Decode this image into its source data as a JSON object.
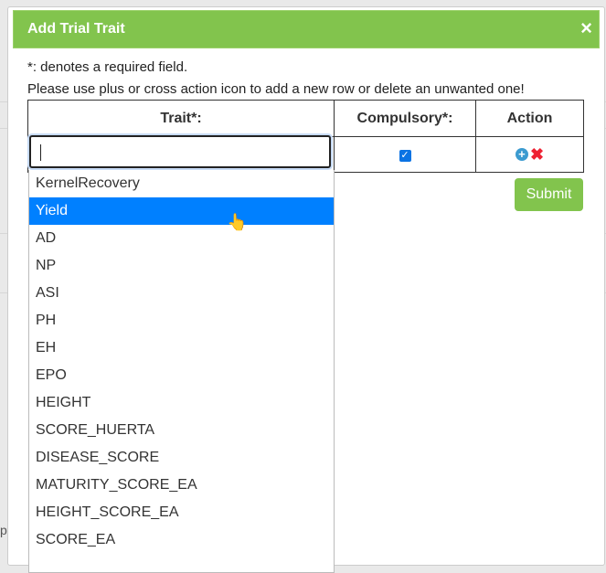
{
  "dialog": {
    "title": "Add Trial Trait",
    "close": "×",
    "note_required": "*: denotes a required field.",
    "note_instructions": "Please use plus or cross action icon to add a new row or delete an unwanted one!",
    "table": {
      "headers": [
        "Trait*:",
        "Compulsory*:",
        "Action"
      ],
      "row": {
        "trait_value": "",
        "compulsory_checked": true,
        "actions": [
          "plus-icon",
          "cross-icon"
        ]
      }
    },
    "submit_label": "Submit",
    "dropdown": {
      "selected": "Yield",
      "items": [
        "KernelRecovery",
        "Yield",
        "AD",
        "NP",
        "ASI",
        "PH",
        "EH",
        "EPO",
        "HEIGHT",
        "SCORE_HUERTA",
        "DISEASE_SCORE",
        "MATURITY_SCORE_EA",
        "HEIGHT_SCORE_EA",
        "SCORE_EA"
      ]
    }
  },
  "background": {
    "fragment": "pt"
  },
  "colors": {
    "header": "#82c44d",
    "highlight": "#0080ff",
    "checkbox": "#0b73e3"
  }
}
